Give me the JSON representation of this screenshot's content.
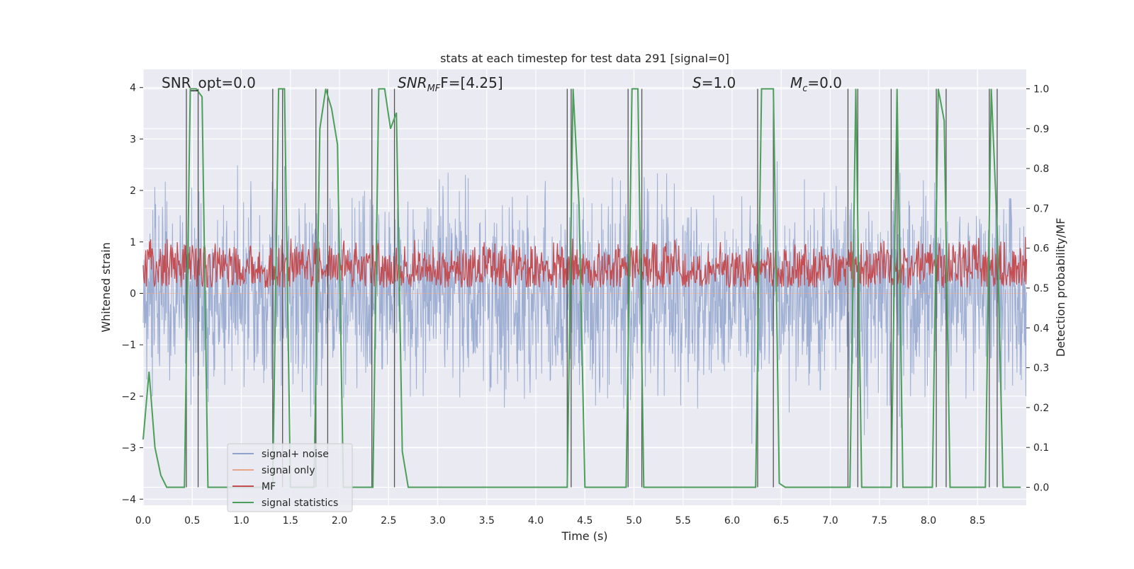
{
  "chart_data": {
    "type": "line",
    "title": "stats at each timestep for test data 291 [signal=0]",
    "xlabel": "Time (s)",
    "ylabel": "Whitened strain",
    "ylabel_right": "Detection probability/MF",
    "xlim": [
      0,
      9
    ],
    "ylim": [
      -4.2,
      4.4
    ],
    "ylim_right": [
      -0.04,
      1.04
    ],
    "x_ticks": [
      "0.0",
      "0.5",
      "1.0",
      "1.5",
      "2.0",
      "2.5",
      "3.0",
      "3.5",
      "4.0",
      "4.5",
      "5.0",
      "5.5",
      "6.0",
      "6.5",
      "7.0",
      "7.5",
      "8.0",
      "8.5"
    ],
    "y_ticks": [
      "4",
      "3",
      "2",
      "1",
      "0",
      "−1",
      "−2",
      "−3",
      "−4"
    ],
    "y_ticks_right": [
      "1.0",
      "0.9",
      "0.8",
      "0.7",
      "0.6",
      "0.5",
      "0.4",
      "0.3",
      "0.2",
      "0.1",
      "0.0"
    ],
    "grid": true,
    "legend_position": "lower-left",
    "annotations": {
      "snr_opt": "SNR_opt=0.0",
      "snr_mf_main": "SNR",
      "snr_mf_sub": "MF",
      "snr_mf_rest": "F=[4.25]",
      "s_main": "S",
      "s_rest": "=1.0",
      "mc_main": "M",
      "mc_sub": "c",
      "mc_rest": "=0.0"
    },
    "series": [
      {
        "name": "signal+ noise",
        "color": "#8fa3cc",
        "axis": "left",
        "envelope": {
          "typical_amplitude": 2.0,
          "peak_amplitude": 3.6
        }
      },
      {
        "name": "signal only",
        "color": "#e8a58a",
        "axis": "left",
        "values": [
          0
        ]
      },
      {
        "name": "MF",
        "color": "#c44e52",
        "axis": "right",
        "range": [
          0.5,
          0.63
        ]
      },
      {
        "name": "signal statistics",
        "color": "#4c9f5a",
        "axis": "right",
        "points": [
          [
            0.0,
            0.12
          ],
          [
            0.06,
            0.29
          ],
          [
            0.12,
            0.1
          ],
          [
            0.18,
            0.03
          ],
          [
            0.24,
            0.0
          ],
          [
            0.42,
            0.0
          ],
          [
            0.48,
            1.0
          ],
          [
            0.54,
            1.0
          ],
          [
            0.6,
            0.98
          ],
          [
            0.66,
            0.0
          ],
          [
            1.32,
            0.0
          ],
          [
            1.38,
            1.0
          ],
          [
            1.44,
            1.0
          ],
          [
            1.5,
            0.0
          ],
          [
            1.74,
            0.0
          ],
          [
            1.8,
            0.9
          ],
          [
            1.86,
            1.0
          ],
          [
            1.92,
            0.95
          ],
          [
            1.98,
            0.86
          ],
          [
            2.04,
            0.0
          ],
          [
            2.34,
            0.0
          ],
          [
            2.4,
            1.0
          ],
          [
            2.46,
            1.0
          ],
          [
            2.52,
            0.9
          ],
          [
            2.58,
            0.94
          ],
          [
            2.64,
            0.09
          ],
          [
            2.7,
            0.0
          ],
          [
            4.32,
            0.0
          ],
          [
            4.38,
            1.0
          ],
          [
            4.44,
            0.71
          ],
          [
            4.5,
            0.0
          ],
          [
            4.92,
            0.0
          ],
          [
            4.98,
            1.0
          ],
          [
            5.04,
            1.0
          ],
          [
            5.1,
            0.0
          ],
          [
            6.24,
            0.0
          ],
          [
            6.3,
            1.0
          ],
          [
            6.42,
            1.0
          ],
          [
            6.48,
            0.01
          ],
          [
            6.54,
            0.0
          ],
          [
            7.2,
            0.0
          ],
          [
            7.26,
            1.0
          ],
          [
            7.32,
            0.0
          ],
          [
            7.62,
            0.0
          ],
          [
            7.68,
            1.0
          ],
          [
            7.74,
            0.0
          ],
          [
            8.04,
            0.0
          ],
          [
            8.1,
            1.0
          ],
          [
            8.16,
            0.92
          ],
          [
            8.22,
            0.0
          ],
          [
            8.58,
            0.0
          ],
          [
            8.64,
            1.0
          ],
          [
            8.7,
            0.65
          ],
          [
            8.76,
            0.0
          ],
          [
            8.94,
            0.0
          ]
        ]
      }
    ],
    "vertical_markers": [
      0.44,
      0.56,
      1.32,
      1.42,
      1.76,
      1.88,
      2.33,
      2.56,
      4.32,
      4.36,
      4.94,
      5.08,
      6.26,
      6.42,
      7.18,
      7.28,
      7.62,
      7.68,
      8.08,
      8.18,
      8.62,
      8.7
    ]
  }
}
